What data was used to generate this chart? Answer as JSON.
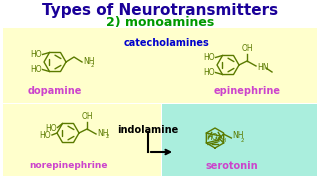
{
  "title": "Types of Neurotransmitters",
  "subtitle": "2) monoamines",
  "title_color": "#1a0099",
  "subtitle_color": "#009900",
  "bg_color": "#ffffff",
  "catecholamines_box_color": "#ffffcc",
  "serotonin_box_color": "#aaeedd",
  "label_catecholamines": "catecholamines",
  "label_catecholamines_color": "#0000cc",
  "label_dopamine": "dopamine",
  "label_dopamine_color": "#cc44cc",
  "label_epinephrine": "epinephrine",
  "label_epinephrine_color": "#cc44cc",
  "label_norepinephrine": "norepinephrine",
  "label_norepinephrine_color": "#cc44cc",
  "label_indolamine": "indolamine",
  "label_indolamine_color": "#000000",
  "label_serotonin": "serotonin",
  "label_serotonin_color": "#cc44cc",
  "mol_color": "#5a7a00",
  "arrow_color": "#000000"
}
